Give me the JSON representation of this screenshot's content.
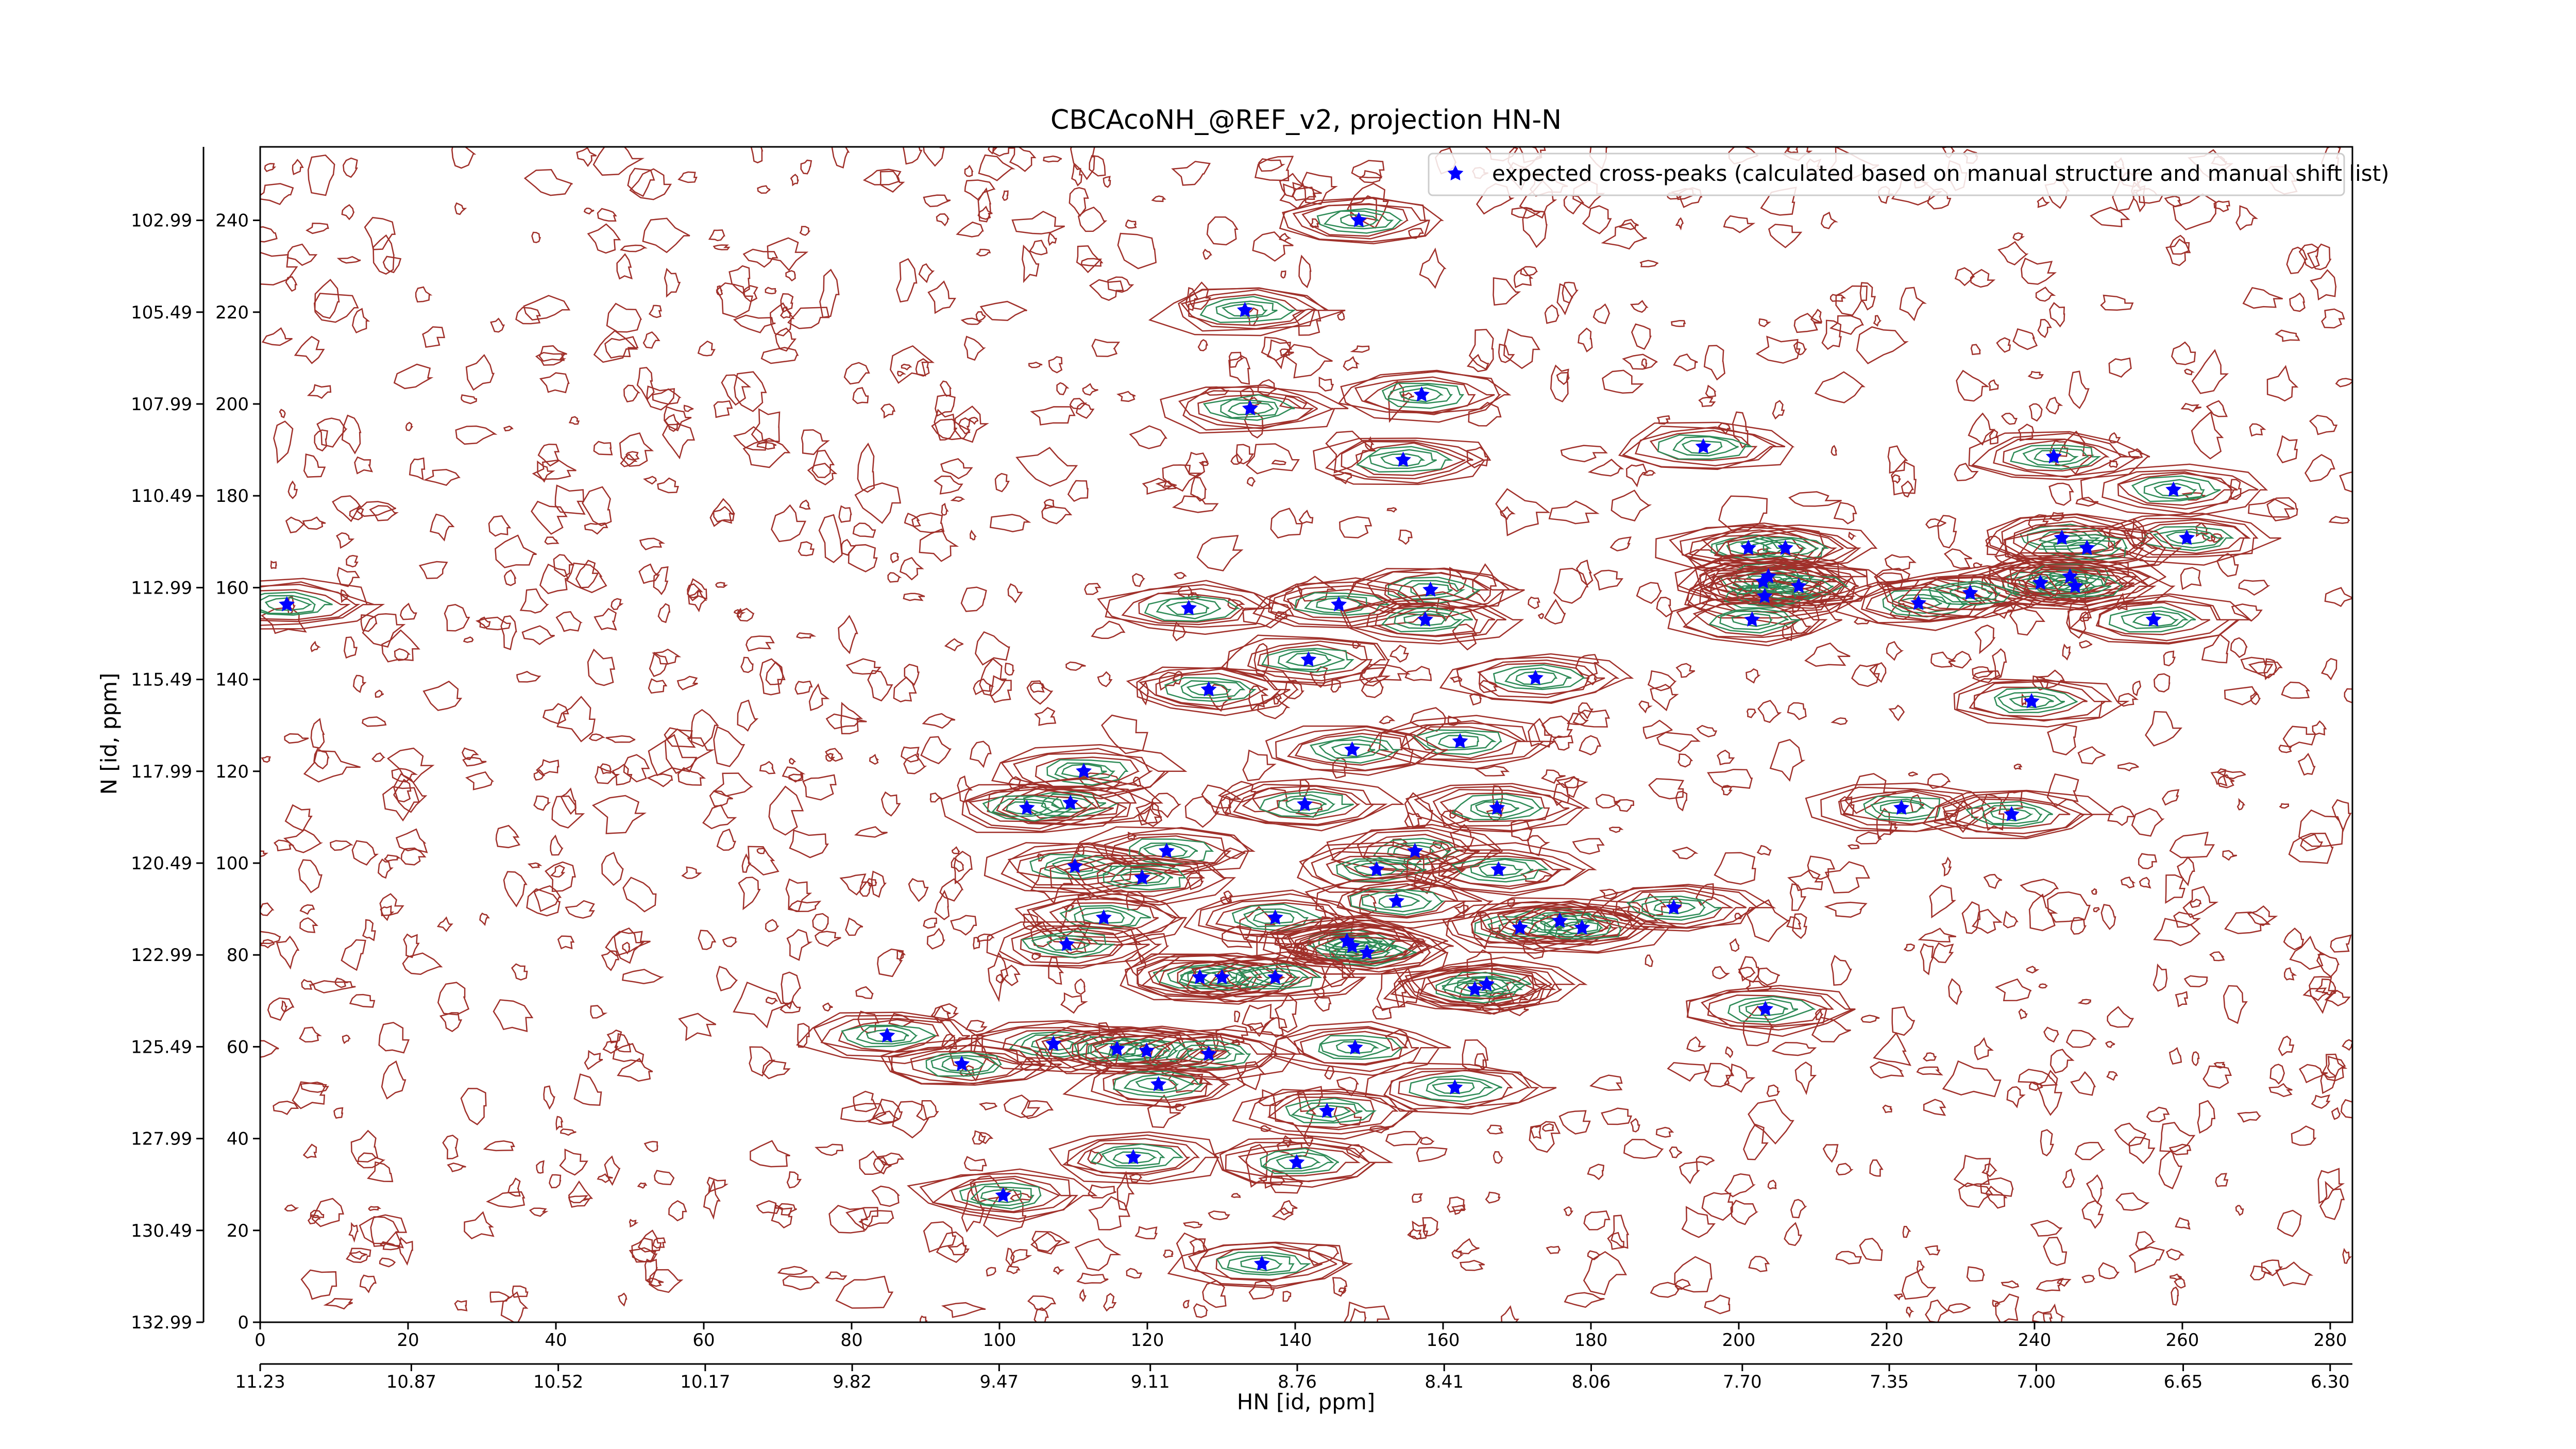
{
  "chart_data": {
    "type": "scatter",
    "title": "CBCAcoNH_@REF_v2, projection HN-N",
    "xlabel": "HN [id, ppm]",
    "ylabel": "N [id, ppm]",
    "xlim": [
      0,
      283
    ],
    "ylim": [
      0,
      256
    ],
    "xticks": [
      0,
      20,
      40,
      60,
      80,
      100,
      120,
      140,
      160,
      180,
      200,
      220,
      240,
      260,
      280
    ],
    "yticks": [
      0,
      20,
      40,
      60,
      80,
      100,
      120,
      140,
      160,
      180,
      200,
      220,
      240
    ],
    "x2lim": [
      11.23,
      6.247
    ],
    "x2ticks": [
      11.23,
      10.87,
      10.52,
      10.17,
      9.82,
      9.47,
      9.11,
      8.76,
      8.41,
      8.06,
      {
        "value": 7.7,
        "label": "7.70"
      },
      7.35,
      {
        "value": 7.0,
        "label": "7.00"
      },
      6.65,
      {
        "value": 6.3,
        "label": "6.30"
      }
    ],
    "y2lim": [
      132.99,
      100.99
    ],
    "y2ticks": [
      132.99,
      130.49,
      127.99,
      125.49,
      122.99,
      120.49,
      117.99,
      115.49,
      112.99,
      110.49,
      107.99,
      105.49,
      102.99
    ],
    "legend": "upper right",
    "contour_colors": [
      "#a0302a",
      "#2e8b57"
    ],
    "series": [
      {
        "name": "expected cross-peaks (calculated based on manual structure and manual shift list)",
        "color": "#0000ff",
        "x": [
          3.6,
          148.6,
          133.2,
          157.1,
          133.9,
          154.6,
          195.2,
          242.6,
          258.8,
          260.6,
          201.3,
          206.3,
          204.0,
          203.3,
          208.1,
          203.5,
          201.8,
          243.7,
          247.1,
          240.8,
          244.8,
          245.5,
          224.3,
          231.3,
          256.1,
          158.3,
          145.9,
          157.6,
          125.6,
          141.8,
          128.3,
          172.5,
          239.6,
          162.3,
          147.7,
          111.4,
          109.6,
          103.7,
          141.3,
          167.3,
          222.0,
          236.9,
          110.2,
          122.6,
          119.3,
          156.2,
          151.0,
          167.5,
          153.7,
          114.1,
          137.3,
          109.1,
          147.0,
          147.7,
          149.7,
          170.4,
          175.8,
          178.8,
          191.2,
          127.1,
          130.1,
          137.3,
          164.3,
          165.9,
          203.6,
          84.8,
          107.3,
          94.9,
          115.9,
          119.9,
          128.3,
          148.1,
          161.6,
          121.5,
          144.3,
          118.1,
          140.2,
          100.5,
          135.5
        ],
        "values": [
          156.3,
          240.0,
          220.4,
          202.0,
          199.0,
          187.8,
          190.7,
          188.5,
          181.3,
          170.8,
          168.6,
          168.6,
          162.4,
          161.3,
          160.3,
          158.1,
          153.0,
          170.8,
          168.6,
          161.0,
          162.4,
          160.3,
          156.6,
          158.8,
          153.0,
          159.5,
          156.3,
          153.0,
          155.5,
          144.3,
          137.8,
          140.3,
          135.2,
          126.5,
          124.7,
          120.0,
          113.1,
          112.0,
          112.8,
          112.0,
          112.0,
          110.6,
          99.3,
          102.6,
          96.8,
          102.6,
          98.6,
          98.6,
          91.7,
          88.1,
          88.1,
          82.3,
          83.0,
          81.9,
          80.5,
          85.9,
          87.4,
          85.9,
          90.3,
          75.1,
          75.1,
          75.1,
          72.5,
          73.6,
          68.2,
          62.4,
          60.6,
          56.2,
          59.5,
          59.1,
          58.4,
          59.8,
          51.1,
          51.8,
          46.0,
          35.9,
          34.8,
          27.6,
          12.7
        ]
      }
    ]
  }
}
